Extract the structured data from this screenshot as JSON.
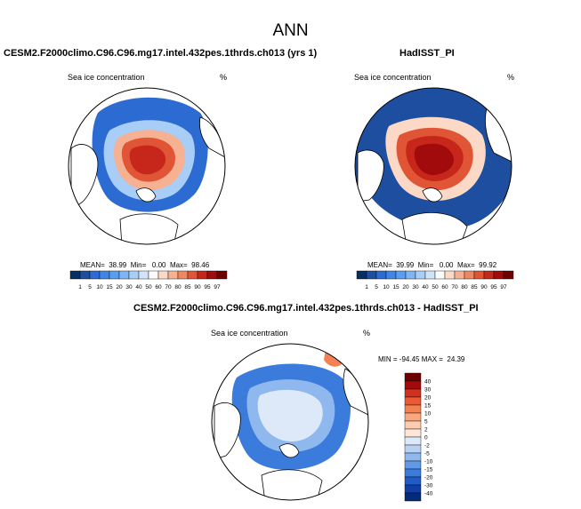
{
  "page_title": "ANN",
  "panels": [
    {
      "case_name": "CESM2.F2000climo.C96.C96.mg17.intel.432pes.1thrds.ch013 (yrs 1)",
      "var_label": "Sea ice concentration",
      "units": "%",
      "stats": "MEAN=  38.99  Min=   0.00  Max=  98.46"
    },
    {
      "case_name": "HadISST_PI",
      "var_label": "Sea ice concentration",
      "units": "%",
      "stats": "MEAN=  39.99  Min=   0.00  Max=  99.92"
    },
    {
      "case_name": "CESM2.F2000climo.C96.C96.mg17.intel.432pes.1thrds.ch013 - HadISST_PI",
      "var_label": "Sea ice concentration",
      "units": "%",
      "stats": "MIN = -94.45 MAX =  24.39"
    }
  ],
  "chart_data": [
    {
      "type": "heatmap",
      "projection": "north-polar-stereographic",
      "title": "CESM2.F2000climo.C96.C96.mg17.intel.432pes.1thrds.ch013 (yrs 1)",
      "variable": "Sea ice concentration",
      "units": "%",
      "mean": 38.99,
      "min": 0.0,
      "max": 98.46,
      "colorbar_levels": [
        1,
        5,
        10,
        15,
        20,
        30,
        40,
        50,
        60,
        70,
        80,
        85,
        90,
        95,
        97
      ],
      "colorbar_colors": [
        "#053061",
        "#1d4ea0",
        "#2c6bd1",
        "#3f86e6",
        "#5b9ef0",
        "#7fb5f5",
        "#a8cdf7",
        "#d0e3f8",
        "#fbfbfb",
        "#fbd9c6",
        "#f6b193",
        "#ef8762",
        "#e05536",
        "#c6271a",
        "#a10b0b",
        "#700000"
      ]
    },
    {
      "type": "heatmap",
      "projection": "north-polar-stereographic",
      "title": "HadISST_PI",
      "variable": "Sea ice concentration",
      "units": "%",
      "mean": 39.99,
      "min": 0.0,
      "max": 99.92,
      "colorbar_levels": [
        1,
        5,
        10,
        15,
        20,
        30,
        40,
        50,
        60,
        70,
        80,
        85,
        90,
        95,
        97
      ],
      "colorbar_colors": [
        "#053061",
        "#1d4ea0",
        "#2c6bd1",
        "#3f86e6",
        "#5b9ef0",
        "#7fb5f5",
        "#a8cdf7",
        "#d0e3f8",
        "#fbfbfb",
        "#fbd9c6",
        "#f6b193",
        "#ef8762",
        "#e05536",
        "#c6271a",
        "#a10b0b",
        "#700000"
      ]
    },
    {
      "type": "heatmap",
      "projection": "north-polar-stereographic",
      "title": "CESM2.F2000climo.C96.C96.mg17.intel.432pes.1thrds.ch013 - HadISST_PI",
      "variable": "Sea ice concentration",
      "units": "%",
      "min": -94.45,
      "max": 24.39,
      "colorbar_levels": [
        40,
        30,
        20,
        15,
        10,
        5,
        2,
        0,
        -2,
        -5,
        -10,
        -15,
        -20,
        -30,
        -40
      ],
      "colorbar_colors": [
        "#700000",
        "#a10b0b",
        "#d2301e",
        "#ea5a34",
        "#f48153",
        "#f9a77e",
        "#fccbb0",
        "#fde6d8",
        "#dde9f8",
        "#b8d2f3",
        "#8fb8ee",
        "#6199e6",
        "#3a7bdc",
        "#1f5cc8",
        "#0e3fa8",
        "#052a78"
      ]
    }
  ]
}
